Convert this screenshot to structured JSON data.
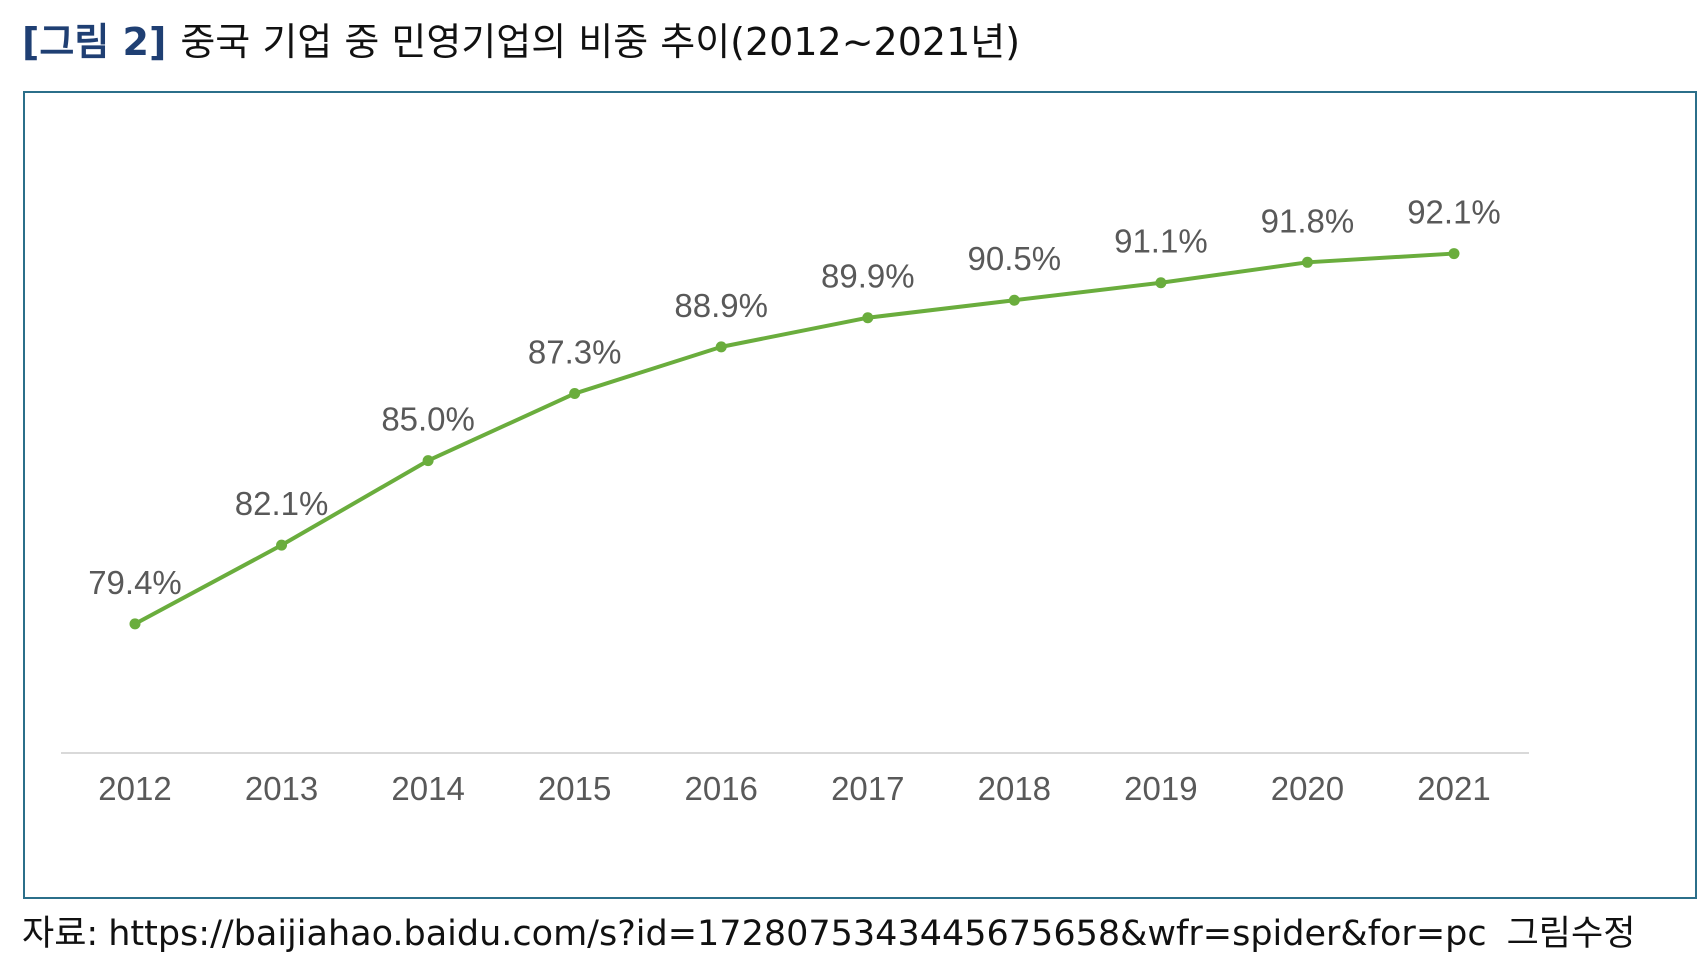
{
  "figure": {
    "label": "[그림 2]",
    "title": "중국 기업 중 민영기업의 비중 추이(2012~2021년)"
  },
  "source": {
    "prefix": "자료:",
    "url": "https://baijiahao.baidu.com/s?id=1728075343445675658&wfr=spider&for=pc",
    "note": "그림수정"
  },
  "colors": {
    "line": "#6aad3d",
    "axis": "#d9d9d9",
    "label_text": "#595959",
    "frame": "#2b6f8a",
    "figure_label": "#1f3f73"
  },
  "chart_data": {
    "type": "line",
    "title": "",
    "xlabel": "",
    "ylabel": "",
    "categories": [
      "2012",
      "2013",
      "2014",
      "2015",
      "2016",
      "2017",
      "2018",
      "2019",
      "2020",
      "2021"
    ],
    "series": [
      {
        "values": [
          79.4,
          82.1,
          85.0,
          87.3,
          88.9,
          89.9,
          90.5,
          91.1,
          91.8,
          92.1
        ],
        "data_labels": [
          "79.4%",
          "82.1%",
          "85.0%",
          "87.3%",
          "88.9%",
          "89.9%",
          "90.5%",
          "91.1%",
          "91.8%",
          "92.1%"
        ]
      }
    ],
    "ylim": [
      70,
      95
    ],
    "grid": false,
    "legend": "none",
    "markers": true
  }
}
